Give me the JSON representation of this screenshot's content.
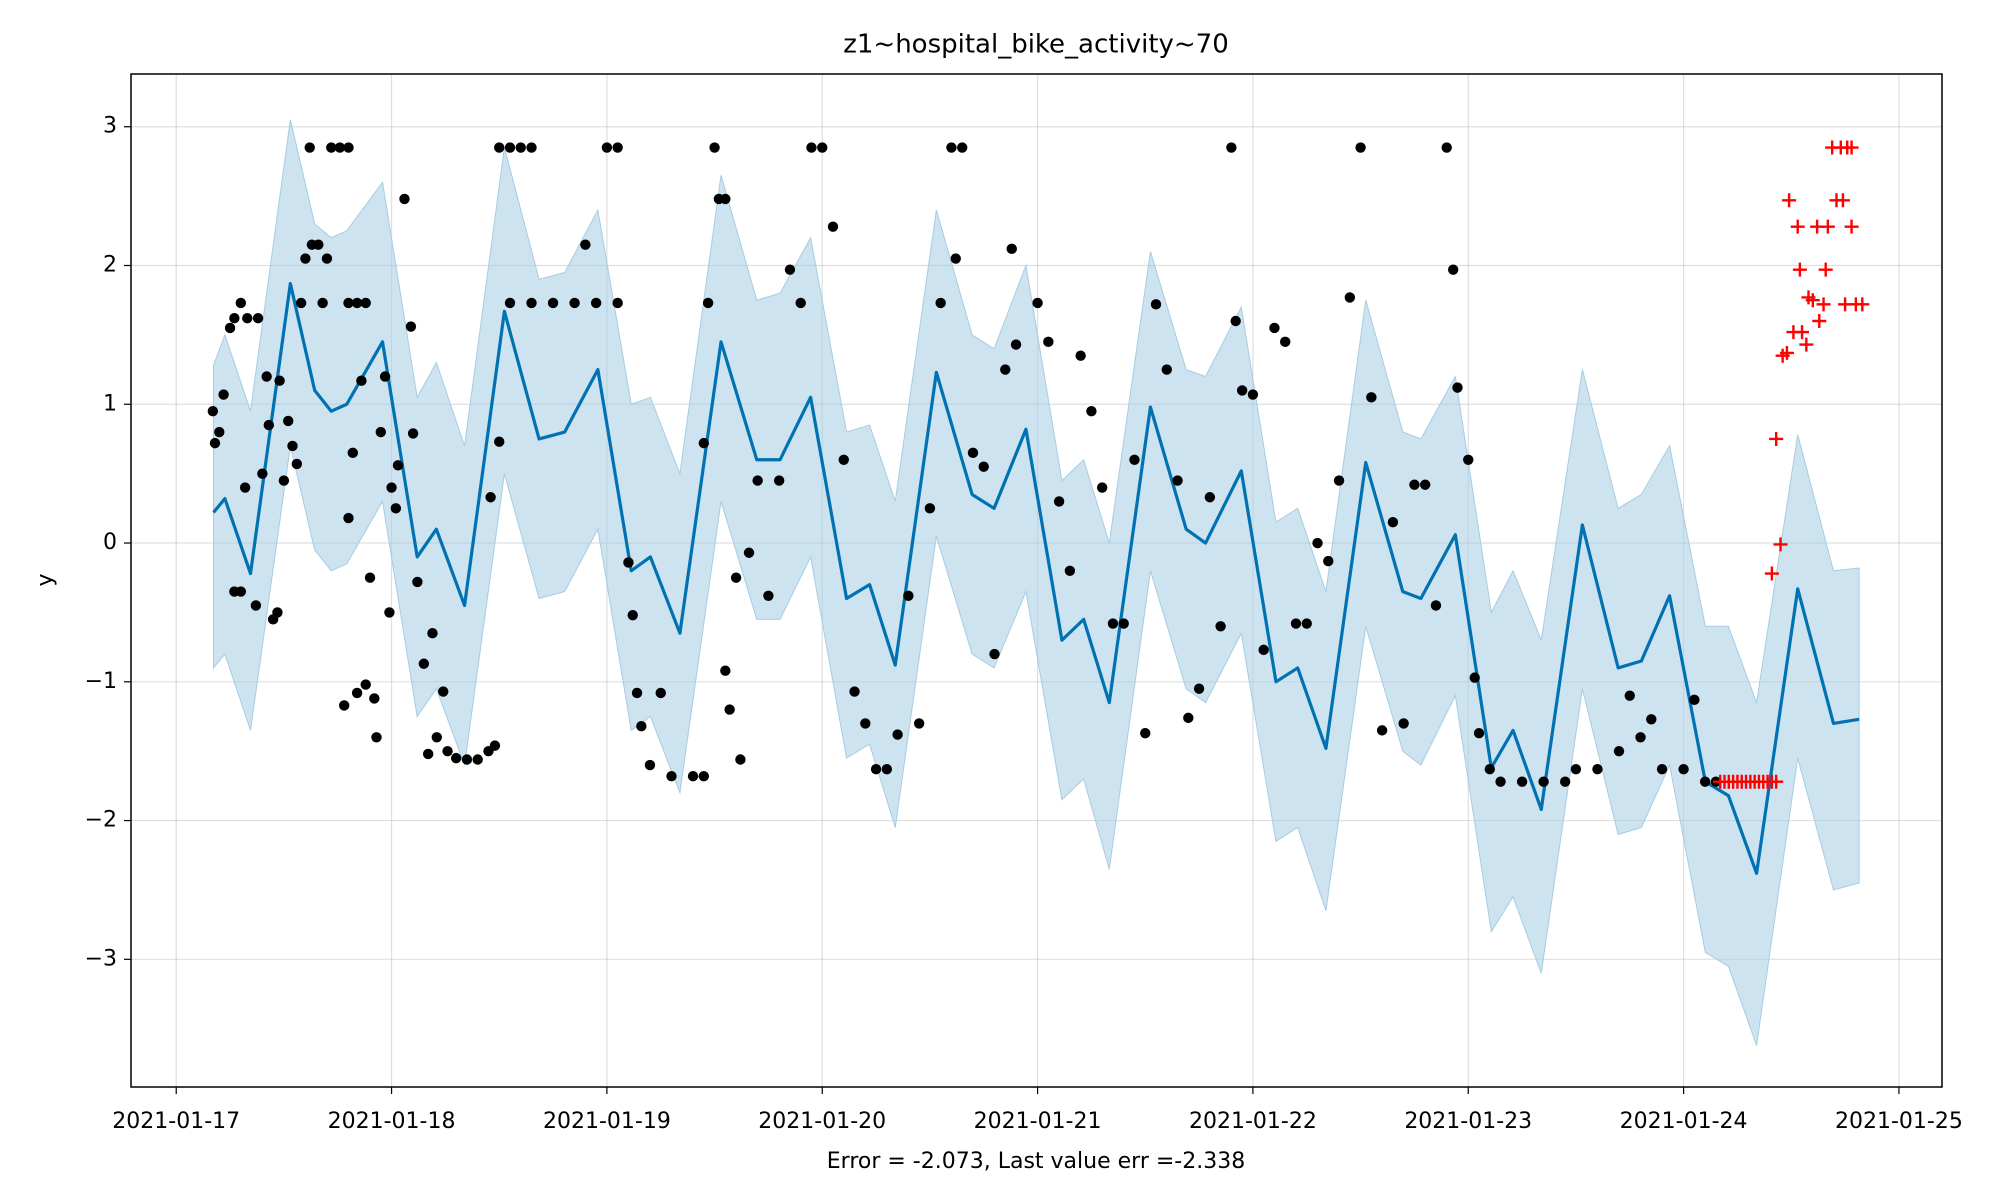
{
  "chart_data": {
    "type": "line",
    "title": "z1~hospital_bike_activity~70",
    "xlabel": "Error = -2.073, Last value err =-2.338",
    "ylabel": "y",
    "grid": true,
    "xlim": [
      -0.21,
      8.2
    ],
    "ylim": [
      -3.92,
      3.38
    ],
    "xticks": [
      {
        "value": 0,
        "label": "2021-01-17"
      },
      {
        "value": 1,
        "label": "2021-01-18"
      },
      {
        "value": 2,
        "label": "2021-01-19"
      },
      {
        "value": 3,
        "label": "2021-01-20"
      },
      {
        "value": 4,
        "label": "2021-01-21"
      },
      {
        "value": 5,
        "label": "2021-01-22"
      },
      {
        "value": 6,
        "label": "2021-01-23"
      },
      {
        "value": 7,
        "label": "2021-01-24"
      },
      {
        "value": 8,
        "label": "2021-01-25"
      }
    ],
    "yticks": [
      {
        "value": -3,
        "label": "−3"
      },
      {
        "value": -2,
        "label": "−2"
      },
      {
        "value": -1,
        "label": "−1"
      },
      0,
      1,
      2,
      3
    ],
    "band": {
      "color": "#a6cce3",
      "x": [
        0.173,
        0.226,
        0.345,
        0.53,
        0.643,
        0.72,
        0.792,
        0.958,
        1.119,
        1.208,
        1.339,
        1.524,
        1.685,
        1.804,
        1.958,
        2.113,
        2.202,
        2.339,
        2.53,
        2.696,
        2.804,
        2.946,
        3.113,
        3.22,
        3.339,
        3.53,
        3.696,
        3.798,
        3.946,
        4.113,
        4.214,
        4.333,
        4.524,
        4.69,
        4.78,
        4.946,
        5.107,
        5.208,
        5.339,
        5.524,
        5.696,
        5.78,
        5.94,
        6.107,
        6.208,
        6.339,
        6.53,
        6.696,
        6.804,
        6.935,
        7.101,
        7.208,
        7.339,
        7.53,
        7.696,
        7.815
      ],
      "upper": [
        1.28,
        1.5,
        0.95,
        3.05,
        2.3,
        2.2,
        2.25,
        2.6,
        1.05,
        1.3,
        0.7,
        2.85,
        1.9,
        1.95,
        2.4,
        1.0,
        1.05,
        0.5,
        2.65,
        1.75,
        1.8,
        2.2,
        0.8,
        0.85,
        0.3,
        2.4,
        1.5,
        1.4,
        2.0,
        0.45,
        0.6,
        0.0,
        2.1,
        1.25,
        1.2,
        1.7,
        0.15,
        0.25,
        -0.35,
        1.75,
        0.8,
        0.75,
        1.2,
        -0.5,
        -0.2,
        -0.7,
        1.25,
        0.25,
        0.35,
        0.7,
        -0.6,
        -0.6,
        -1.15,
        0.78,
        -0.2,
        -0.18
      ],
      "lower": [
        -0.9,
        -0.8,
        -1.35,
        0.7,
        -0.05,
        -0.2,
        -0.15,
        0.3,
        -1.25,
        -1.05,
        -1.6,
        0.5,
        -0.4,
        -0.35,
        0.1,
        -1.35,
        -1.25,
        -1.8,
        0.3,
        -0.55,
        -0.55,
        -0.1,
        -1.55,
        -1.45,
        -2.05,
        0.05,
        -0.8,
        -0.9,
        -0.35,
        -1.85,
        -1.7,
        -2.35,
        -0.2,
        -1.05,
        -1.15,
        -0.65,
        -2.15,
        -2.05,
        -2.65,
        -0.6,
        -1.5,
        -1.6,
        -1.1,
        -2.8,
        -2.55,
        -3.1,
        -1.05,
        -2.1,
        -2.05,
        -1.6,
        -2.95,
        -3.05,
        -3.62,
        -1.55,
        -2.5,
        -2.45
      ]
    },
    "forecast": {
      "color": "#0072b2",
      "x": [
        0.173,
        0.226,
        0.345,
        0.53,
        0.643,
        0.72,
        0.792,
        0.958,
        1.119,
        1.208,
        1.339,
        1.524,
        1.685,
        1.804,
        1.958,
        2.113,
        2.202,
        2.339,
        2.53,
        2.696,
        2.804,
        2.946,
        3.113,
        3.22,
        3.339,
        3.53,
        3.696,
        3.798,
        3.946,
        4.113,
        4.214,
        4.333,
        4.524,
        4.69,
        4.78,
        4.946,
        5.107,
        5.208,
        5.339,
        5.524,
        5.696,
        5.78,
        5.94,
        6.107,
        6.208,
        6.339,
        6.53,
        6.696,
        6.804,
        6.935,
        7.101,
        7.208,
        7.339,
        7.53,
        7.696,
        7.815
      ],
      "values": [
        0.22,
        0.32,
        -0.22,
        1.87,
        1.1,
        0.95,
        1.0,
        1.45,
        -0.1,
        0.1,
        -0.45,
        1.67,
        0.75,
        0.8,
        1.25,
        -0.2,
        -0.1,
        -0.65,
        1.45,
        0.6,
        0.6,
        1.05,
        -0.4,
        -0.3,
        -0.88,
        1.23,
        0.35,
        0.25,
        0.82,
        -0.7,
        -0.55,
        -1.15,
        0.98,
        0.1,
        0.0,
        0.52,
        -1.0,
        -0.9,
        -1.48,
        0.58,
        -0.35,
        -0.4,
        0.06,
        -1.62,
        -1.35,
        -1.92,
        0.13,
        -0.9,
        -0.85,
        -0.38,
        -1.72,
        -1.82,
        -2.38,
        -0.33,
        -1.3,
        -1.27
      ]
    },
    "observed": {
      "color": "#000000",
      "marker": "o",
      "x": [
        0.17,
        0.18,
        0.2,
        0.22,
        0.25,
        0.27,
        0.3,
        0.33,
        0.38,
        0.27,
        0.3,
        0.32,
        0.37,
        0.4,
        0.42,
        0.43,
        0.45,
        0.47,
        0.48,
        0.5,
        0.52,
        0.54,
        0.56,
        0.58,
        0.6,
        0.62,
        0.63,
        0.66,
        0.68,
        0.7,
        0.72,
        0.76,
        0.8,
        0.8,
        0.84,
        0.88,
        0.78,
        0.8,
        0.82,
        0.84,
        0.86,
        0.88,
        0.9,
        0.92,
        0.93,
        0.95,
        0.97,
        0.99,
        1.0,
        1.02,
        1.03,
        1.06,
        1.09,
        1.1,
        1.12,
        1.15,
        1.17,
        1.19,
        1.21,
        1.24,
        1.26,
        1.3,
        1.35,
        1.4,
        1.45,
        1.48,
        1.46,
        1.5,
        1.5,
        1.55,
        1.6,
        1.65,
        1.55,
        1.65,
        1.75,
        1.85,
        1.95,
        2.05,
        1.9,
        2.0,
        2.05,
        2.1,
        2.12,
        2.14,
        2.16,
        2.2,
        2.25,
        2.3,
        2.4,
        2.45,
        2.45,
        2.47,
        2.5,
        2.52,
        2.55,
        2.55,
        2.57,
        2.6,
        2.62,
        2.66,
        2.7,
        2.75,
        2.8,
        2.85,
        2.9,
        2.95,
        3.0,
        3.05,
        3.1,
        3.15,
        3.2,
        3.25,
        3.3,
        3.35,
        3.4,
        3.45,
        3.5,
        3.55,
        3.6,
        3.65,
        3.62,
        3.7,
        3.75,
        3.8,
        3.85,
        3.88,
        3.9,
        4.0,
        4.05,
        4.1,
        4.15,
        4.2,
        4.25,
        4.3,
        4.35,
        4.4,
        4.45,
        4.5,
        4.55,
        4.6,
        4.65,
        4.7,
        4.75,
        4.8,
        4.85,
        4.9,
        4.92,
        4.95,
        5.0,
        5.05,
        5.1,
        5.15,
        5.2,
        5.25,
        5.3,
        5.35,
        5.4,
        5.45,
        5.5,
        5.55,
        5.6,
        5.65,
        5.7,
        5.75,
        5.8,
        5.85,
        5.9,
        5.93,
        5.95,
        6.0,
        6.03,
        6.05,
        6.1,
        6.15,
        6.25,
        6.35,
        6.45,
        6.5,
        6.6,
        6.7,
        6.75,
        6.8,
        6.85,
        6.9,
        7.0,
        7.05,
        7.1,
        7.15
      ],
      "values": [
        0.95,
        0.72,
        0.8,
        1.07,
        1.55,
        1.62,
        1.73,
        1.62,
        1.62,
        -0.35,
        -0.35,
        0.4,
        -0.45,
        0.5,
        1.2,
        0.85,
        -0.55,
        -0.5,
        1.17,
        0.45,
        0.88,
        0.7,
        0.57,
        1.73,
        2.05,
        2.85,
        2.15,
        2.15,
        1.73,
        2.05,
        2.85,
        2.85,
        2.85,
        1.73,
        1.73,
        1.73,
        -1.17,
        0.18,
        0.65,
        -1.08,
        1.17,
        -1.02,
        -0.25,
        -1.12,
        -1.4,
        0.8,
        1.2,
        -0.5,
        0.4,
        0.25,
        0.56,
        2.48,
        1.56,
        0.79,
        -0.28,
        -0.87,
        -1.52,
        -0.65,
        -1.4,
        -1.07,
        -1.5,
        -1.55,
        -1.56,
        -1.56,
        -1.5,
        -1.46,
        0.33,
        0.73,
        2.85,
        2.85,
        2.85,
        2.85,
        1.73,
        1.73,
        1.73,
        1.73,
        1.73,
        1.73,
        2.15,
        2.85,
        2.85,
        -0.14,
        -0.52,
        -1.08,
        -1.32,
        -1.6,
        -1.08,
        -1.68,
        -1.68,
        -1.68,
        0.72,
        1.73,
        2.85,
        2.48,
        2.48,
        -0.92,
        -1.2,
        -0.25,
        -1.56,
        -0.07,
        0.45,
        -0.38,
        0.45,
        1.97,
        1.73,
        2.85,
        2.85,
        2.28,
        0.6,
        -1.07,
        -1.3,
        -1.63,
        -1.63,
        -1.38,
        -0.38,
        -1.3,
        0.25,
        1.73,
        2.85,
        2.85,
        2.05,
        0.65,
        0.55,
        -0.8,
        1.25,
        2.12,
        1.43,
        1.73,
        1.45,
        0.3,
        -0.2,
        1.35,
        0.95,
        0.4,
        -0.58,
        -0.58,
        0.6,
        -1.37,
        1.72,
        1.25,
        0.45,
        -1.26,
        -1.05,
        0.33,
        -0.6,
        2.85,
        1.6,
        1.1,
        1.07,
        -0.77,
        1.55,
        1.45,
        -0.58,
        -0.58,
        0.0,
        -0.13,
        0.45,
        1.77,
        2.85,
        1.05,
        -1.35,
        0.15,
        -1.3,
        0.42,
        0.42,
        -0.45,
        2.85,
        1.97,
        1.12,
        0.6,
        -0.97,
        -1.37,
        -1.63,
        -1.72,
        -1.72,
        -1.72,
        -1.72,
        -1.63,
        -1.63,
        -1.5,
        -1.1,
        -1.4,
        -1.27,
        -1.63,
        -1.63,
        -1.13,
        -1.72,
        -1.72
      ]
    },
    "test": {
      "color": "#ff0000",
      "marker": "+",
      "x": [
        7.17,
        7.19,
        7.21,
        7.23,
        7.25,
        7.27,
        7.29,
        7.31,
        7.33,
        7.35,
        7.37,
        7.39,
        7.41,
        7.43,
        7.41,
        7.43,
        7.45,
        7.46,
        7.48,
        7.49,
        7.51,
        7.53,
        7.54,
        7.55,
        7.57,
        7.58,
        7.6,
        7.62,
        7.63,
        7.65,
        7.67,
        7.66,
        7.69,
        7.71,
        7.73,
        7.74,
        7.76,
        7.78,
        7.75,
        7.78,
        7.8,
        7.83
      ],
      "values": [
        -1.72,
        -1.72,
        -1.72,
        -1.72,
        -1.72,
        -1.72,
        -1.72,
        -1.72,
        -1.72,
        -1.72,
        -1.72,
        -1.72,
        -1.72,
        -1.72,
        -0.22,
        0.75,
        -0.01,
        1.35,
        1.37,
        2.47,
        1.52,
        2.28,
        1.97,
        1.52,
        1.43,
        1.77,
        1.75,
        2.28,
        1.6,
        1.72,
        2.28,
        1.97,
        2.85,
        2.47,
        2.85,
        2.47,
        2.85,
        2.85,
        1.72,
        2.28,
        1.72,
        1.72
      ]
    }
  }
}
